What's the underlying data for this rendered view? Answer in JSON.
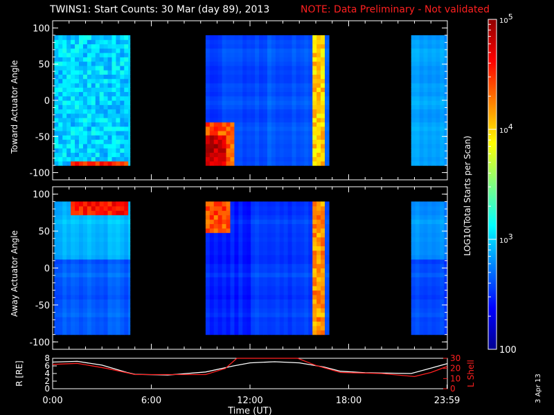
{
  "title": {
    "main": "TWINS1: Start Counts: 30 Mar (day  89), 2013",
    "note": "NOTE: Data Preliminary - Not validated",
    "note_color": "#ff2020"
  },
  "date_stamp": "3 Apr 13",
  "chart_data": [
    {
      "type": "heatmap",
      "ylabel": "Toward Actuator Angle",
      "ylim": [
        -110,
        110
      ],
      "yticks": [
        -100,
        -50,
        0,
        50,
        100
      ],
      "xlim": [
        0,
        24
      ],
      "data_intervals_hours": [
        [
          0.1,
          4.7
        ],
        [
          9.3,
          16.8
        ],
        [
          21.8,
          23.99
        ]
      ],
      "color_scale": "log",
      "features": [
        {
          "hours": [
            0.1,
            4.7
          ],
          "angle": [
            -90,
            90
          ],
          "log10_counts": 3.0
        },
        {
          "hours": [
            1.1,
            4.7
          ],
          "angle": [
            -90,
            -82
          ],
          "log10_counts": 4.5
        },
        {
          "hours": [
            9.3,
            11.0
          ],
          "angle": [
            -90,
            -30
          ],
          "log10_counts": 4.4
        },
        {
          "hours": [
            9.3,
            10.5
          ],
          "angle": [
            -90,
            -50
          ],
          "log10_counts": 4.8
        },
        {
          "hours": [
            15.8,
            16.6
          ],
          "angle": [
            -90,
            90
          ],
          "log10_counts": 4.0
        }
      ]
    },
    {
      "type": "heatmap",
      "ylabel": "Away Actuator Angle",
      "ylim": [
        -110,
        110
      ],
      "yticks": [
        -100,
        -50,
        0,
        50,
        100
      ],
      "xlim": [
        0,
        24
      ],
      "data_intervals_hours": [
        [
          0.1,
          4.7
        ],
        [
          9.3,
          16.8
        ],
        [
          21.8,
          23.99
        ]
      ],
      "color_scale": "log",
      "features": [
        {
          "hours": [
            1.2,
            4.7
          ],
          "angle": [
            70,
            90
          ],
          "log10_counts": 4.6
        },
        {
          "hours": [
            9.3,
            10.7
          ],
          "angle": [
            50,
            90
          ],
          "log10_counts": 4.4
        },
        {
          "hours": [
            15.8,
            16.6
          ],
          "angle": [
            -90,
            90
          ],
          "log10_counts": 4.2
        }
      ]
    },
    {
      "type": "line",
      "xlabel": "Time (UT)",
      "x_ticklabels": [
        "0:00",
        "6:00",
        "12:00",
        "18:00",
        "23:59"
      ],
      "x_tick_hours": [
        0,
        6,
        12,
        18,
        23.98
      ],
      "ylabel": "R [RE]",
      "ylim": [
        0,
        8
      ],
      "yticks": [
        0,
        2,
        4,
        6,
        8
      ],
      "y2label": "L Shell",
      "y2lim": [
        0,
        30
      ],
      "y2ticks": [
        0,
        10,
        20,
        30
      ],
      "series": [
        {
          "axis": "left",
          "color": "#ffffff",
          "x": [
            0,
            1.5,
            3,
            4.5,
            5,
            7,
            9.3,
            11,
            12,
            13.5,
            15,
            16.5,
            17.5,
            19,
            21.8,
            23,
            23.99
          ],
          "y": [
            7.0,
            7.2,
            6.2,
            4.3,
            3.8,
            3.6,
            4.4,
            6.0,
            6.8,
            7.1,
            6.8,
            5.7,
            4.6,
            4.2,
            4.0,
            5.4,
            6.6
          ]
        },
        {
          "axis": "right",
          "color": "#ff2020",
          "x": [
            0,
            1.5,
            3.3,
            5,
            9.3,
            10.5,
            11.2,
            14.9,
            16,
            17.5,
            20,
            22,
            23,
            23.99
          ],
          "y": [
            24,
            25,
            20,
            14,
            14,
            20,
            30,
            30,
            23,
            16,
            15,
            12,
            16,
            22
          ]
        }
      ]
    }
  ],
  "colorbar": {
    "label": "LOG10(Total Starts per Scan)",
    "scale": "log",
    "range": [
      100,
      100000
    ],
    "tick_labels": [
      "100",
      "10^3",
      "10^4",
      "10^5"
    ]
  }
}
